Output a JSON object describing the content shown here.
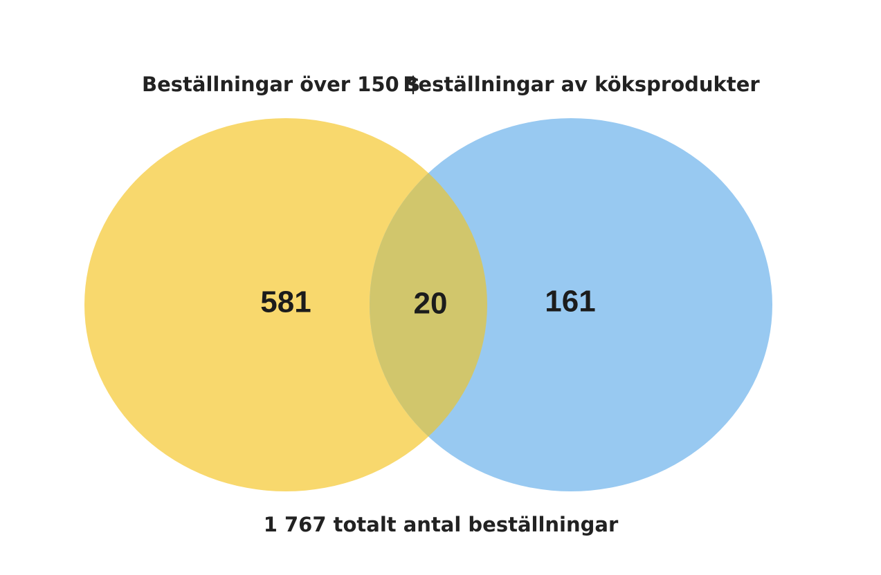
{
  "chart_data": {
    "type": "venn",
    "sets": [
      {
        "name": "Beställningar över 150 $",
        "color": "#f8d86d",
        "value": 581
      },
      {
        "name": "Beställningar av köksprodukter",
        "color": "#98c9f1",
        "value": 161
      }
    ],
    "intersection": {
      "value": 20,
      "color": "#d1c66c"
    },
    "footer": "1 767 totalt antal beställningar"
  }
}
